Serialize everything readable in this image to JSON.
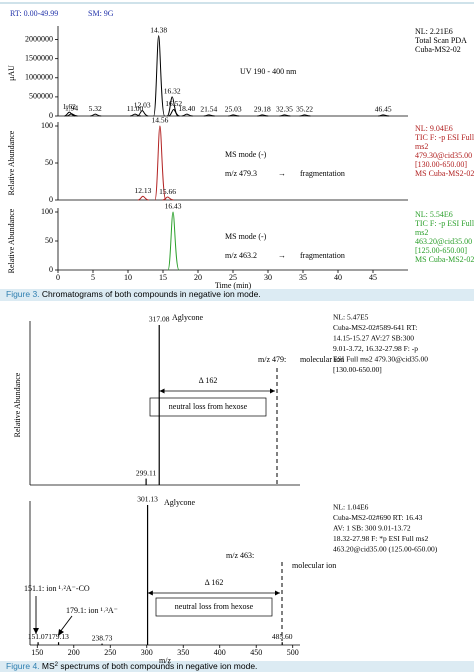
{
  "header": {
    "rt": "RT: 0.00-49.99",
    "sm": "SM: 9G"
  },
  "captions": [
    {
      "label": "Figure 3.",
      "text": " Chromatograms of both compounds in negative ion mode."
    },
    {
      "label": "Figure 4.",
      "pre": " MS",
      "sup": "2",
      "text": " spectrums of both compounds in negative ion mode."
    }
  ],
  "chart_data": [
    {
      "type": "line",
      "color": "#000000",
      "ylabel": "μAU",
      "xlim": [
        0,
        50
      ],
      "ylim": [
        0,
        2250000
      ],
      "yticks": [
        0,
        500000,
        1000000,
        1500000,
        2000000
      ],
      "peaks_x": [
        1.62,
        1.94,
        5.32,
        11.0,
        12.03,
        14.38,
        16.32,
        16.52,
        18.4,
        21.54,
        25.03,
        29.18,
        32.35,
        35.22,
        46.45
      ],
      "peaks_y": [
        100000,
        60000,
        50000,
        50000,
        140000,
        2100000,
        500000,
        170000,
        50000,
        30000,
        30000,
        30000,
        30000,
        30000,
        30000
      ],
      "peak_labels": [
        "1.62",
        "1.94",
        "5.32",
        "11.00",
        "12.03",
        "14.38",
        "16.32",
        "16.52",
        "18.40",
        "21.54",
        "25.03",
        "29.18",
        "32.35",
        "35.22",
        "46.45"
      ],
      "info": [
        "NL: 2.21E6",
        "Total Scan PDA",
        "Cuba-MS2-02"
      ],
      "notes": [
        "UV 190 - 400 nm"
      ]
    },
    {
      "type": "line",
      "color": "#b22222",
      "ylabel": "Relative Abundance",
      "xlim": [
        0,
        50
      ],
      "ylim": [
        0,
        100
      ],
      "yticks": [
        0,
        50,
        100
      ],
      "peaks_x": [
        12.13,
        14.56,
        15.66
      ],
      "peaks_y": [
        5,
        100,
        4
      ],
      "peak_labels": [
        "12.13",
        "14.56",
        "15.66"
      ],
      "info": [
        "NL: 9.04E6",
        "TIC F: -p ESI Full",
        "ms2",
        "479.30@cid35.00",
        "[130.00-650.00]",
        "MS Cuba-MS2-02"
      ],
      "notes": [
        "MS mode (-)",
        "m/z 479.3",
        "→",
        "fragmentation"
      ]
    },
    {
      "type": "line",
      "color": "#2ca02c",
      "ylabel": "Relative Abundance",
      "xlim": [
        0,
        50
      ],
      "ylim": [
        0,
        100
      ],
      "yticks": [
        0,
        50,
        100
      ],
      "xticks": [
        0,
        5,
        10,
        15,
        20,
        25,
        30,
        35,
        40,
        45
      ],
      "xlabel": "Time (min)",
      "peaks_x": [
        16.43
      ],
      "peaks_y": [
        100
      ],
      "peak_labels": [
        "16.43"
      ],
      "info": [
        "NL: 5.54E6",
        "TIC F: -p ESI Full",
        "ms2",
        "463.20@cid35.00",
        "[125.00-650.00]",
        "MS Cuba-MS2-02"
      ],
      "notes": [
        "MS mode (-)",
        "m/z 463.2",
        "→",
        "fragmentation"
      ]
    },
    {
      "type": "bar",
      "color": "#000000",
      "ylabel": "Relative Abundance",
      "xlim": [
        140,
        510
      ],
      "ylim": [
        0,
        100
      ],
      "peaks_x": [
        299.11,
        317.08
      ],
      "peaks_y": [
        4,
        100
      ],
      "peak_labels": [
        "299.11",
        "317.08"
      ],
      "info": [
        "NL: 5.47E5",
        "Cuba-MS2-02#589-641 RT:",
        "14.15-15.27 AV:27 SB:300",
        "9.01-3.72, 16.32-27.98 F: -p",
        "ESI Full ms2 479.30@cid35.00",
        "[130.00-650.00]"
      ],
      "notes": [
        "Aglycone",
        "m/z 479:",
        "molecular ion",
        "Δ 162",
        "neutral loss from hexose"
      ]
    },
    {
      "type": "bar",
      "color": "#000000",
      "xlim": [
        140,
        510
      ],
      "ylim": [
        0,
        100
      ],
      "xticks": [
        150,
        200,
        250,
        300,
        350,
        400,
        450,
        500
      ],
      "xlabel": "m/z",
      "peaks_x": [
        151.07,
        179.13,
        238.73,
        301.13,
        485.6
      ],
      "peaks_y": [
        2,
        2,
        1,
        100,
        2
      ],
      "peak_labels": [
        "151.07",
        "179.13",
        "238.73",
        "301.13",
        "485.60"
      ],
      "info": [
        "NL: 1.04E6",
        "Cuba-MS2-02#690 RT: 16.43",
        "AV: 1 SB: 300 9.01-13.72",
        "18.32-27.98 F: *p ESI Full ms2",
        "463.20@cid35.00 (125.00-650.00)"
      ],
      "notes": [
        "Aglycone",
        "m/z 463:",
        "molecular ion",
        "Δ 162",
        "neutral loss from hexose",
        "151.1: ion ¹˒²A⁻-CO",
        "179.1: ion ¹˒³A⁻"
      ]
    }
  ]
}
